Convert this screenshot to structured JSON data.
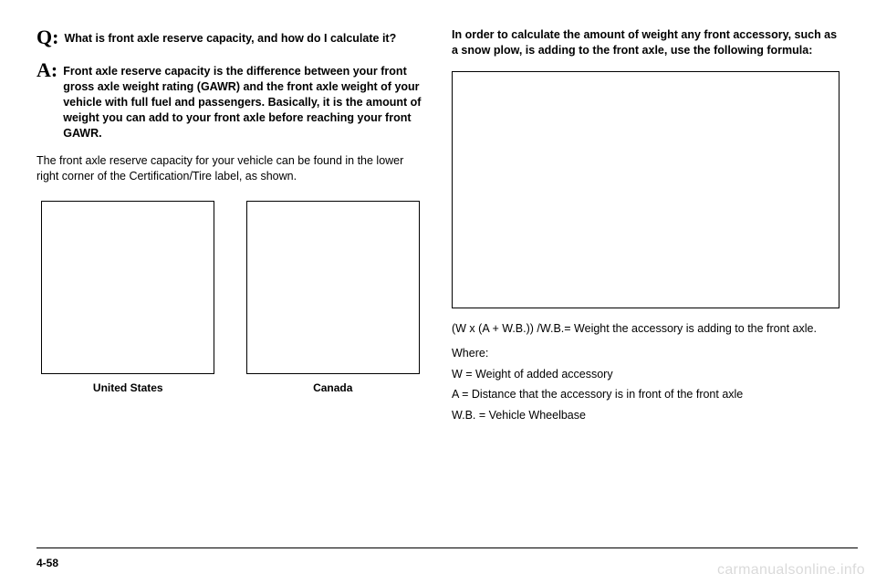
{
  "left": {
    "q_letter": "Q:",
    "q_text": "What is front axle reserve capacity, and how do I calculate it?",
    "a_letter": "A:",
    "a_text": "Front axle reserve capacity is the difference between your front gross axle weight rating (GAWR) and the front axle weight of your vehicle with full fuel and passengers. Basically, it is the amount of weight you can add to your front axle before reaching your front GAWR.",
    "body": "The front axle reserve capacity for your vehicle can be found in the lower right corner of the Certification/Tire label, as shown.",
    "label_us": "United States",
    "label_ca": "Canada"
  },
  "right": {
    "intro": "In order to calculate the amount of weight any front accessory, such as a snow plow, is adding to the front axle, use the following formula:",
    "formula": "(W x (A + W.B.)) /W.B.= Weight the accessory is adding to the front axle.",
    "where_label": "Where:",
    "w_def": "W = Weight of added accessory",
    "a_def": "A = Distance that the accessory is in front of the front axle",
    "wb_def": "W.B. = Vehicle Wheelbase"
  },
  "footer": {
    "page": "4-58",
    "watermark": "carmanualsonline.info"
  }
}
